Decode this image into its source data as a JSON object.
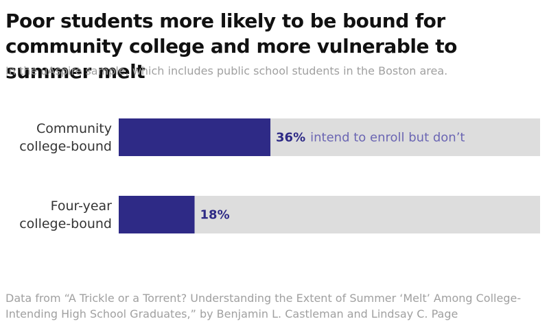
{
  "chart_data": {
    "type": "bar",
    "orientation": "horizontal",
    "title": "Poor students more likely to be bound for community college and more vulnerable to summer melt",
    "subtitle": "In the uAspire sample, which includes public school students in the Boston area.",
    "categories": [
      "Community college-bound",
      "Four-year college-bound"
    ],
    "values": [
      36,
      18
    ],
    "value_labels": [
      "36%",
      "18%"
    ],
    "annotation": "intend to enroll but don’t",
    "color": "#2e2a86",
    "track_color": "#dddddd",
    "xlim": [
      0,
      100
    ],
    "source": "Data from “A Trickle or a Torrent? Understanding the Extent of Summer ‘Melt’ Among College-Intending High School Graduates,” by Benjamin L. Castleman and Lindsay C. Page"
  }
}
